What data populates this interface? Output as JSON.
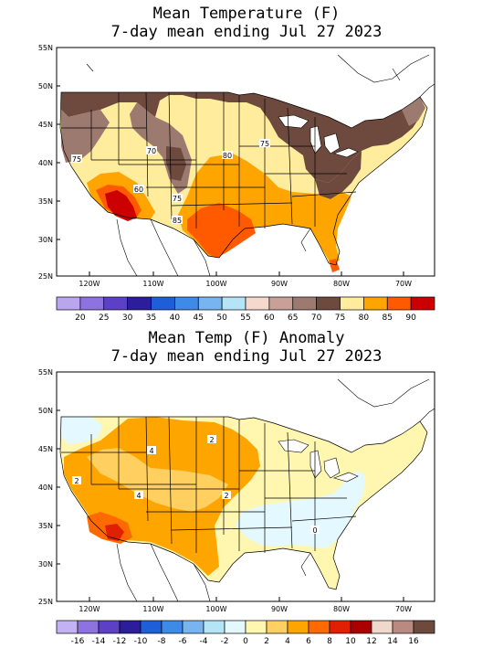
{
  "panels": [
    {
      "title_line1": "Mean Temperature (F)",
      "title_line2": "7-day mean ending Jul 27 2023",
      "lat_labels": [
        "55N",
        "50N",
        "45N",
        "40N",
        "35N",
        "30N",
        "25N"
      ],
      "lon_labels": [
        "120W",
        "110W",
        "100W",
        "90W",
        "80W",
        "70W"
      ],
      "contour_labels": [
        "75",
        "70",
        "80",
        "75",
        "60",
        "75",
        "85"
      ],
      "colorbar": {
        "colors": [
          "#b9a6ee",
          "#8c73e0",
          "#5d40c8",
          "#2b1d9b",
          "#1e5fd9",
          "#3d8ae8",
          "#77b4f0",
          "#b6e4f7",
          "#f4d9cc",
          "#c8a097",
          "#9c7a70",
          "#6e4a3e",
          "#ffec9c",
          "#ffa500",
          "#ff5a00",
          "#cc0000"
        ],
        "labels": [
          "20",
          "25",
          "30",
          "35",
          "40",
          "45",
          "50",
          "55",
          "60",
          "65",
          "70",
          "75",
          "80",
          "85",
          "90"
        ]
      }
    },
    {
      "title_line1": "Mean Temp (F) Anomaly",
      "title_line2": "7-day mean ending Jul 27 2023",
      "lat_labels": [
        "55N",
        "50N",
        "45N",
        "40N",
        "35N",
        "30N",
        "25N"
      ],
      "lon_labels": [
        "120W",
        "110W",
        "100W",
        "90W",
        "80W",
        "70W"
      ],
      "contour_labels": [
        "2",
        "2",
        "4",
        "4",
        "2",
        "0"
      ],
      "colorbar": {
        "colors": [
          "#c2b2f4",
          "#8c73e0",
          "#5d40c8",
          "#2b1d9b",
          "#1e5fd9",
          "#3d8ae8",
          "#77b4f0",
          "#b6e4f7",
          "#e4f9ff",
          "#fff7b0",
          "#ffd060",
          "#ffa500",
          "#ff6a00",
          "#e02000",
          "#aa0000",
          "#f0d8cc",
          "#b88a80",
          "#6e4a3e"
        ],
        "labels": [
          "-16",
          "-14",
          "-12",
          "-10",
          "-8",
          "-6",
          "-4",
          "-2",
          "0",
          "2",
          "4",
          "6",
          "8",
          "10",
          "12",
          "14",
          "16"
        ]
      }
    }
  ]
}
